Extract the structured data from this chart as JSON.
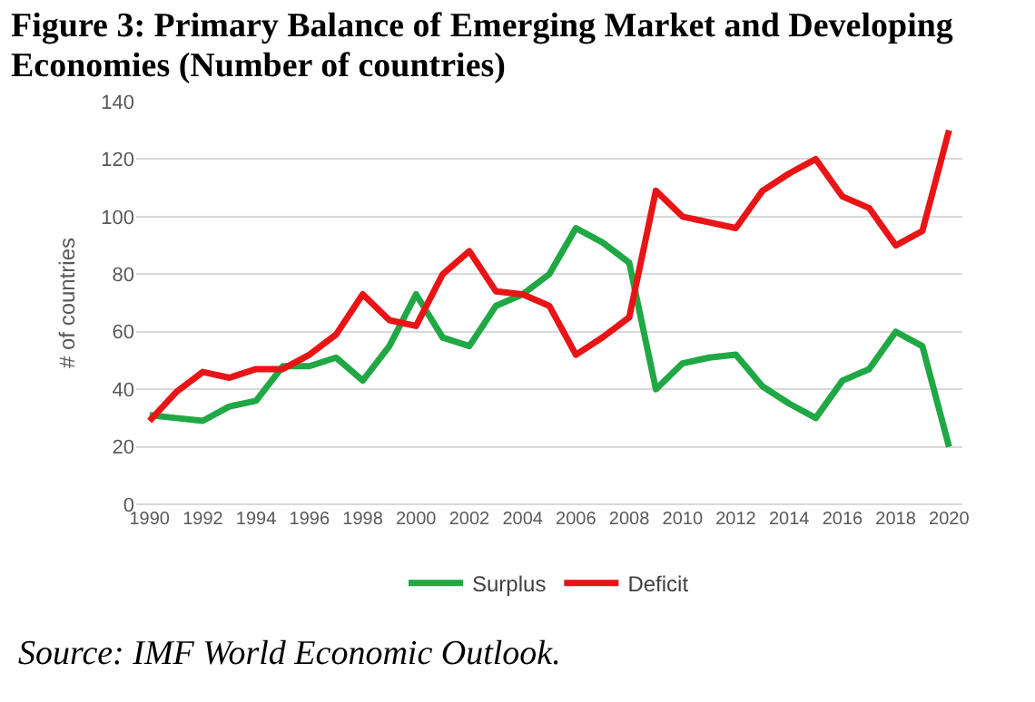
{
  "chart_data": {
    "type": "line",
    "title": "Figure 3: Primary Balance of Emerging Market and Developing Economies (Number of countries)",
    "ylabel": "# of countries",
    "x": [
      1990,
      1991,
      1992,
      1993,
      1994,
      1995,
      1996,
      1997,
      1998,
      1999,
      2000,
      2001,
      2002,
      2003,
      2004,
      2005,
      2006,
      2007,
      2008,
      2009,
      2010,
      2011,
      2012,
      2013,
      2014,
      2015,
      2016,
      2017,
      2018,
      2019,
      2020
    ],
    "series": [
      {
        "name": "Surplus",
        "color": "#1fa844",
        "values": [
          31,
          30,
          29,
          34,
          36,
          48,
          48,
          51,
          43,
          55,
          73,
          58,
          55,
          69,
          73,
          80,
          96,
          91,
          84,
          40,
          49,
          51,
          52,
          41,
          35,
          30,
          43,
          47,
          60,
          55,
          20
        ]
      },
      {
        "name": "Deficit",
        "color": "#e81416",
        "values": [
          29,
          39,
          46,
          44,
          47,
          47,
          52,
          59,
          73,
          64,
          62,
          80,
          88,
          74,
          73,
          69,
          52,
          58,
          65,
          109,
          100,
          98,
          96,
          109,
          115,
          120,
          107,
          103,
          90,
          95,
          130
        ]
      }
    ],
    "xlim": [
      1989.5,
      2020.5
    ],
    "xticks": [
      1990,
      1992,
      1994,
      1996,
      1998,
      2000,
      2002,
      2004,
      2006,
      2008,
      2010,
      2012,
      2014,
      2016,
      2018,
      2020
    ],
    "ylim": [
      0,
      140
    ],
    "yticks": [
      0,
      20,
      40,
      60,
      80,
      100,
      120,
      140
    ],
    "grid": "y",
    "legend": "bottom",
    "marker": "none",
    "line_style": "solid",
    "annotations": [
      "Source: IMF World Economic Outlook."
    ]
  }
}
